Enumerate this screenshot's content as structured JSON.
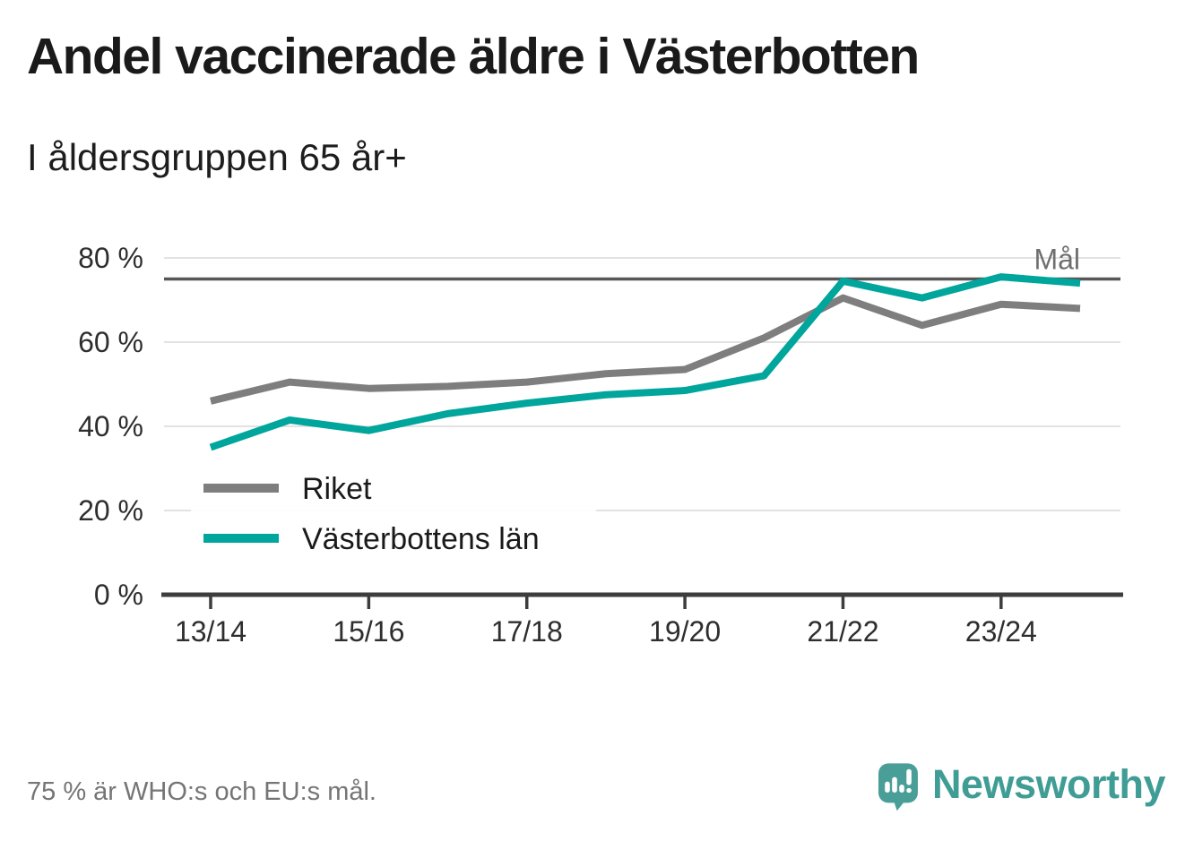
{
  "page": {
    "title": "Andel vaccinerade äldre i Västerbotten",
    "subtitle": "I åldersgruppen 65 år+",
    "footnote": "75 % är WHO:s och EU:s mål.",
    "brand": "Newsworthy"
  },
  "colors": {
    "riket": "#7e7e7e",
    "vasterbotten": "#00a59c",
    "goal_line": "#565759",
    "goal_label": "#6f6f6f",
    "grid": "#e2e2e2",
    "axis": "#3d3d3d",
    "tick_label": "#2e2e2e",
    "muted_text": "#757575",
    "brand_teal": "#3f9d96"
  },
  "chart_data": {
    "type": "line",
    "title": "Andel vaccinerade äldre i Västerbotten",
    "subtitle": "I åldersgruppen 65 år+",
    "x": [
      "13/14",
      "14/15",
      "15/16",
      "16/17",
      "17/18",
      "18/19",
      "19/20",
      "20/21",
      "21/22",
      "22/23",
      "23/24",
      "24/25"
    ],
    "x_tick_labels": [
      "13/14",
      "15/16",
      "17/18",
      "19/20",
      "21/22",
      "23/24"
    ],
    "y_ticks": [
      0,
      20,
      40,
      60,
      80
    ],
    "y_unit": "%",
    "ylim": [
      0,
      85
    ],
    "grid": "horizontal",
    "legend_position": "inside-bottom-left",
    "goal": {
      "value": 75,
      "label": "Mål"
    },
    "series": [
      {
        "name": "Riket",
        "color": "#7e7e7e",
        "values": [
          46,
          50.5,
          49,
          49.5,
          50.5,
          52.5,
          53.5,
          61,
          70.5,
          64,
          69,
          68
        ]
      },
      {
        "name": "Västerbottens län",
        "color": "#00a59c",
        "values": [
          35,
          41.5,
          39,
          43,
          45.5,
          47.5,
          48.5,
          52,
          74.5,
          70.5,
          75.5,
          74
        ]
      }
    ],
    "annotation": "75 % är WHO:s och EU:s mål."
  }
}
